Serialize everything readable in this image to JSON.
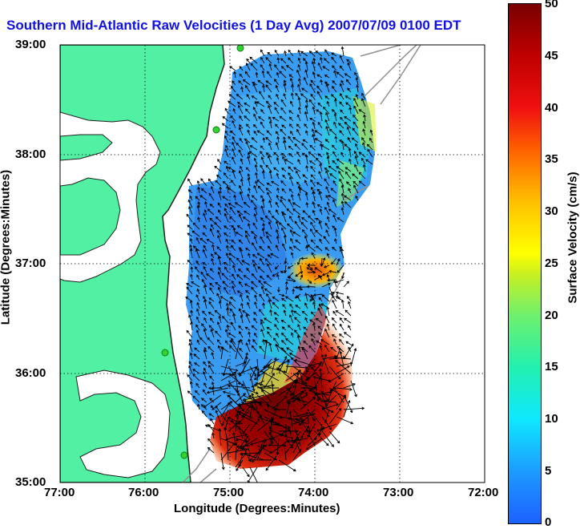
{
  "title": "Southern Mid-Atlantic Raw Velocities (1 Day Avg) 2007/07/09 0100 EDT",
  "axes": {
    "xlabel": "Longitude (Degrees:Minutes)",
    "ylabel": "Latitude (Degrees:Minutes)",
    "xticks": [
      "77:00",
      "76:00",
      "75:00",
      "74:00",
      "73:00",
      "72:00"
    ],
    "yticks": [
      "39:00",
      "38:00",
      "37:00",
      "36:00",
      "35:00"
    ]
  },
  "colorbar": {
    "label": "Surface Velocity (cm/s)",
    "ticks": [
      "50",
      "45",
      "40",
      "35",
      "30",
      "25",
      "20",
      "15",
      "10",
      "5",
      "0"
    ],
    "range": [
      0,
      50
    ]
  },
  "colors": {
    "land": "#52f0a2",
    "title": "#1010e8",
    "coast": "#1e1e1e",
    "arrow": "#000000",
    "stations": "#32d232"
  }
}
